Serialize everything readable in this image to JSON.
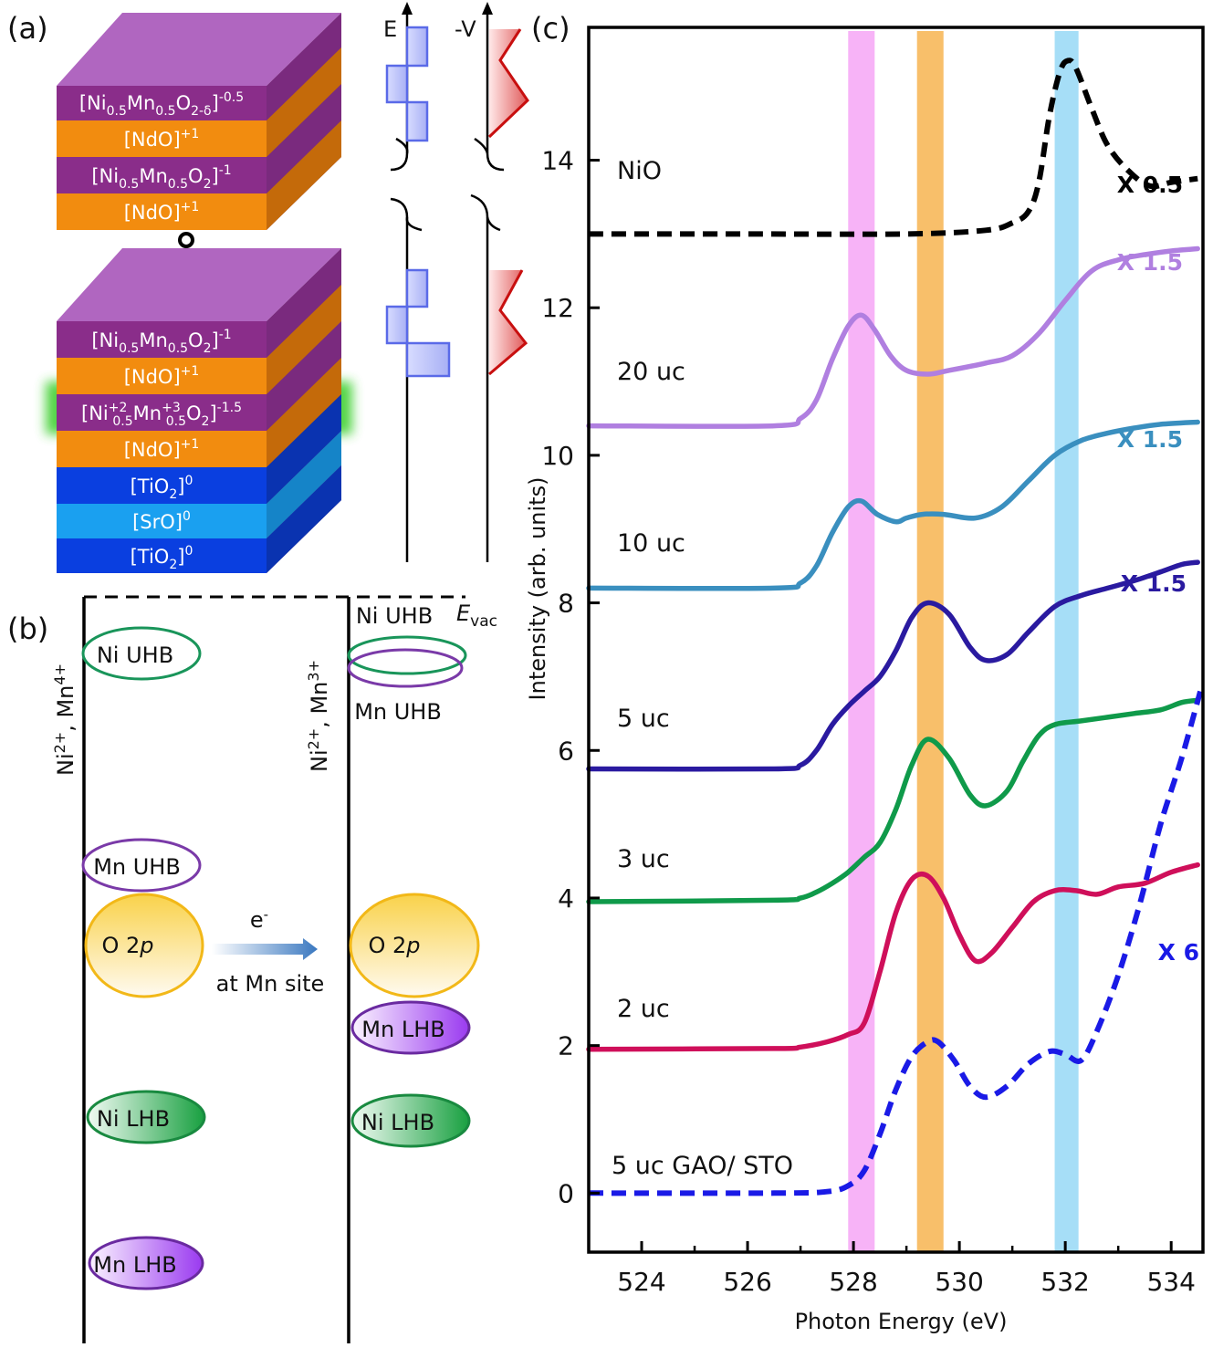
{
  "panels": {
    "a": {
      "tag": "(a)",
      "top_stack": [
        {
          "text": "[Ni0.5Mn0.5O2-δ]-0.5",
          "base": "[Ni",
          "s1": "0.5",
          "m1": "Mn",
          "s2": "0.5",
          "m2": "O",
          "s3": "2-δ",
          "m3": "]",
          "sup": "-0.5",
          "color": "#8a2d8a"
        },
        {
          "text": "[NdO]+1",
          "base": "[NdO]",
          "sup": "+1",
          "color": "#f28c0f"
        },
        {
          "text": "[Ni0.5Mn0.5O2]-1",
          "base": "[Ni",
          "s1": "0.5",
          "m1": "Mn",
          "s2": "0.5",
          "m2": "O",
          "s3": "2",
          "m3": "]",
          "sup": "-1",
          "color": "#8a2d8a"
        },
        {
          "text": "[NdO]+1",
          "base": "[NdO]",
          "sup": "+1",
          "color": "#f28c0f"
        }
      ],
      "bottom_stack": [
        {
          "text": "[Ni0.5Mn0.5O2]-1",
          "color": "#8a2d8a"
        },
        {
          "text": "[NdO]+1",
          "color": "#f28c0f"
        },
        {
          "text": "[Ni+2 0.5 Mn+3 0.5 O2]-1.5",
          "color": "#8a2d8a"
        },
        {
          "text": "[NdO]+1",
          "color": "#f28c0f"
        },
        {
          "text": "[TiO2]0",
          "color": "#0a3fe0"
        },
        {
          "text": "[SrO]0",
          "color": "#1aa0f0"
        },
        {
          "text": "[TiO2]0",
          "color": "#0a3fe0"
        }
      ],
      "axis_e": "E",
      "axis_v": "-V"
    },
    "b": {
      "tag": "(b)",
      "evac": "E",
      "evac_sub": "vac",
      "left_label": "Ni2+, Mn4+",
      "right_label": "Ni2+, Mn3+",
      "left_bands": {
        "ni_uhb": "Ni UHB",
        "mn_uhb": "Mn UHB",
        "o2p": "O 2",
        "o2p_p": "p",
        "ni_lhb": "Ni LHB",
        "mn_lhb": "Mn LHB"
      },
      "right_bands": {
        "ni_uhb": "Ni UHB",
        "mn_uhb": "Mn UHB",
        "o2p": "O 2",
        "o2p_p": "p",
        "mn_lhb": "Mn LHB",
        "ni_lhb": "Ni LHB"
      },
      "transfer": "e",
      "transfer_sup": "-",
      "transfer_site": "at Mn site"
    },
    "c": {
      "tag": "(c)"
    }
  },
  "colors": {
    "nio": "#000000",
    "uc20": "#b07fe0",
    "uc10": "#3a8fbf",
    "uc5": "#2a1aa0",
    "uc3": "#0f9a4a",
    "uc2": "#cf0f5a",
    "gao": "#1a1ae6",
    "band_pink": "#f7b3f7",
    "band_orange": "#f8bf6a",
    "band_blue": "#a6def7"
  },
  "chart_data": {
    "type": "line",
    "xlabel": "Photon Energy (eV)",
    "ylabel": "Intensity (arb. units)",
    "xlim": [
      523,
      534.6
    ],
    "ylim": [
      -0.8,
      15.8
    ],
    "xticks": [
      524,
      526,
      528,
      530,
      532,
      534
    ],
    "yticks": [
      0,
      2,
      4,
      6,
      8,
      10,
      12,
      14
    ],
    "bands": [
      {
        "name": "pink",
        "x0": 527.9,
        "x1": 528.4
      },
      {
        "name": "orange",
        "x0": 529.2,
        "x1": 529.7
      },
      {
        "name": "blue",
        "x0": 531.8,
        "x1": 532.25
      }
    ],
    "series": [
      {
        "name": "NiO",
        "scale": "X 0.5",
        "dashed": true,
        "color_key": "nio",
        "x": [
          523.0,
          526.0,
          529.0,
          530.5,
          531.0,
          531.3,
          531.5,
          531.7,
          531.9,
          532.05,
          532.2,
          532.5,
          532.8,
          533.2,
          533.6,
          534.0,
          534.5
        ],
        "y": [
          13.0,
          13.0,
          13.0,
          13.05,
          13.15,
          13.3,
          13.7,
          14.6,
          15.2,
          15.35,
          15.25,
          14.7,
          14.2,
          13.85,
          13.65,
          13.7,
          13.75
        ]
      },
      {
        "name": "20 uc",
        "scale": "X 1.5",
        "dashed": false,
        "color_key": "uc20",
        "x": [
          523.0,
          526.5,
          527.0,
          527.3,
          527.6,
          527.9,
          528.15,
          528.4,
          528.7,
          529.0,
          529.4,
          529.8,
          530.5,
          531.0,
          531.5,
          532.0,
          532.5,
          533.0,
          533.5,
          534.0,
          534.5
        ],
        "y": [
          10.4,
          10.4,
          10.5,
          10.75,
          11.3,
          11.75,
          11.9,
          11.7,
          11.35,
          11.15,
          11.1,
          11.15,
          11.25,
          11.35,
          11.65,
          12.1,
          12.5,
          12.65,
          12.72,
          12.77,
          12.8
        ]
      },
      {
        "name": "10 uc",
        "scale": "X 1.5",
        "dashed": false,
        "color_key": "uc10",
        "x": [
          523.0,
          526.5,
          527.0,
          527.3,
          527.6,
          527.9,
          528.15,
          528.45,
          528.8,
          529.0,
          529.3,
          529.7,
          530.3,
          530.8,
          531.3,
          531.8,
          532.3,
          532.8,
          533.3,
          533.8,
          534.5
        ],
        "y": [
          8.2,
          8.2,
          8.27,
          8.5,
          8.95,
          9.3,
          9.38,
          9.2,
          9.1,
          9.15,
          9.2,
          9.2,
          9.15,
          9.3,
          9.65,
          10.0,
          10.2,
          10.3,
          10.37,
          10.42,
          10.45
        ]
      },
      {
        "name": "5 uc",
        "scale": "X 1.5",
        "dashed": false,
        "color_key": "uc5",
        "x": [
          523.0,
          526.5,
          527.0,
          527.3,
          527.6,
          527.9,
          528.2,
          528.5,
          528.8,
          529.1,
          529.4,
          529.8,
          530.2,
          530.5,
          530.9,
          531.3,
          531.8,
          532.3,
          532.8,
          533.3,
          533.8,
          534.2,
          534.5
        ],
        "y": [
          5.75,
          5.75,
          5.8,
          6.0,
          6.35,
          6.6,
          6.8,
          7.0,
          7.35,
          7.8,
          8.0,
          7.85,
          7.4,
          7.22,
          7.3,
          7.6,
          7.95,
          8.1,
          8.2,
          8.3,
          8.42,
          8.52,
          8.55
        ]
      },
      {
        "name": "3 uc",
        "scale": "",
        "dashed": false,
        "color_key": "uc3",
        "x": [
          523.0,
          526.5,
          527.0,
          527.3,
          527.6,
          527.9,
          528.2,
          528.5,
          528.8,
          529.1,
          529.4,
          529.8,
          530.2,
          530.5,
          530.9,
          531.2,
          531.5,
          531.8,
          532.3,
          532.8,
          533.3,
          533.8,
          534.2,
          534.5
        ],
        "y": [
          3.95,
          3.97,
          4.0,
          4.08,
          4.2,
          4.35,
          4.55,
          4.75,
          5.2,
          5.8,
          6.15,
          5.9,
          5.4,
          5.25,
          5.45,
          5.85,
          6.2,
          6.35,
          6.4,
          6.45,
          6.5,
          6.55,
          6.65,
          6.68
        ]
      },
      {
        "name": "2 uc",
        "scale": "",
        "dashed": false,
        "color_key": "uc2",
        "x": [
          523.0,
          526.5,
          527.0,
          527.5,
          527.9,
          528.2,
          528.5,
          528.8,
          529.1,
          529.4,
          529.7,
          530.0,
          530.3,
          530.6,
          531.0,
          531.4,
          531.8,
          532.2,
          532.6,
          533.0,
          533.5,
          534.0,
          534.5
        ],
        "y": [
          1.95,
          1.96,
          1.98,
          2.05,
          2.15,
          2.3,
          3.0,
          3.8,
          4.25,
          4.3,
          4.0,
          3.5,
          3.15,
          3.25,
          3.6,
          3.95,
          4.1,
          4.1,
          4.05,
          4.15,
          4.2,
          4.35,
          4.45
        ]
      },
      {
        "name": "5 uc GAO/ STO",
        "scale": "X 6",
        "dashed": true,
        "color_key": "gao",
        "x": [
          523.0,
          526.5,
          527.5,
          527.9,
          528.2,
          528.5,
          528.8,
          529.1,
          529.4,
          529.6,
          529.9,
          530.2,
          530.5,
          530.9,
          531.3,
          531.7,
          532.0,
          532.3,
          532.6,
          533.0,
          533.4,
          533.8,
          534.2,
          534.55
        ],
        "y": [
          0.0,
          0.0,
          0.02,
          0.1,
          0.3,
          0.8,
          1.4,
          1.85,
          2.05,
          2.05,
          1.8,
          1.45,
          1.3,
          1.45,
          1.75,
          1.92,
          1.88,
          1.8,
          2.2,
          2.95,
          3.9,
          5.0,
          5.9,
          6.8
        ]
      }
    ]
  }
}
